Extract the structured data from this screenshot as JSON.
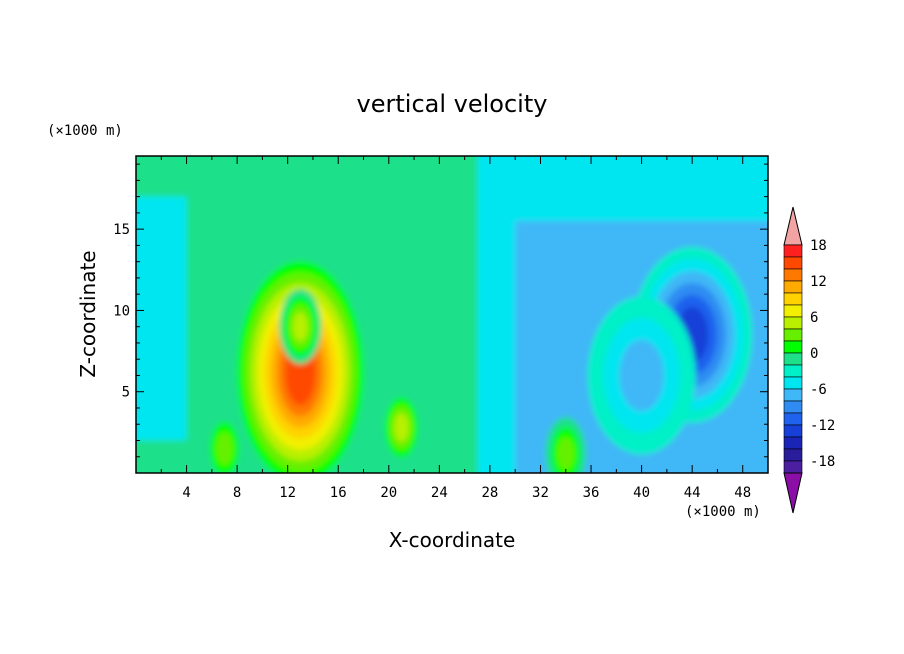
{
  "chart_data": {
    "type": "heatmap",
    "title": "vertical velocity",
    "xlabel": "X-coordinate",
    "ylabel": "Z-coordinate",
    "x_units": "(×1000 m)",
    "y_units": "(×1000 m)",
    "xlim": [
      0,
      50
    ],
    "ylim": [
      0,
      19.5
    ],
    "x_ticks": [
      "4",
      "8",
      "12",
      "16",
      "20",
      "24",
      "28",
      "32",
      "36",
      "40",
      "44",
      "48"
    ],
    "y_ticks": [
      "5",
      "10",
      "15"
    ],
    "colorbar": {
      "levels": [
        -20,
        -18,
        -16,
        -14,
        -12,
        -10,
        -8,
        -6,
        -4,
        -2,
        0,
        2,
        4,
        6,
        8,
        10,
        12,
        14,
        16,
        18,
        20
      ],
      "tick_labels": [
        "18",
        "12",
        "6",
        "0",
        "-6",
        "-12",
        "-18"
      ],
      "colors": [
        "#8b0fa6",
        "#4b1fa0",
        "#2a1d9c",
        "#1a24b6",
        "#1740d8",
        "#1e62ee",
        "#2f8cf2",
        "#40b7f7",
        "#00e6f0",
        "#00f0c8",
        "#1ee08a",
        "#00ff00",
        "#66f000",
        "#b8f000",
        "#f2f000",
        "#ffd200",
        "#ffaa00",
        "#ff7800",
        "#ff4800",
        "#ff2020",
        "#f2a3a3"
      ],
      "extend": "both"
    },
    "features": [
      {
        "name": "updraft core",
        "x": 13,
        "z": 6.2,
        "w": 17
      },
      {
        "name": "updraft cloud",
        "x": 13,
        "z": 9,
        "w": 8
      },
      {
        "name": "secondary updraft",
        "x": 21,
        "z": 2.8,
        "w": 7
      },
      {
        "name": "small updraft",
        "x": 7,
        "z": 1.5,
        "w": 6
      },
      {
        "name": "small updraft",
        "x": 34,
        "z": 1.2,
        "w": 6
      },
      {
        "name": "downdraft core",
        "x": 44,
        "z": 8.5,
        "w": -11
      },
      {
        "name": "downdraft region",
        "x": 40,
        "z": 6,
        "w": -6
      }
    ]
  }
}
